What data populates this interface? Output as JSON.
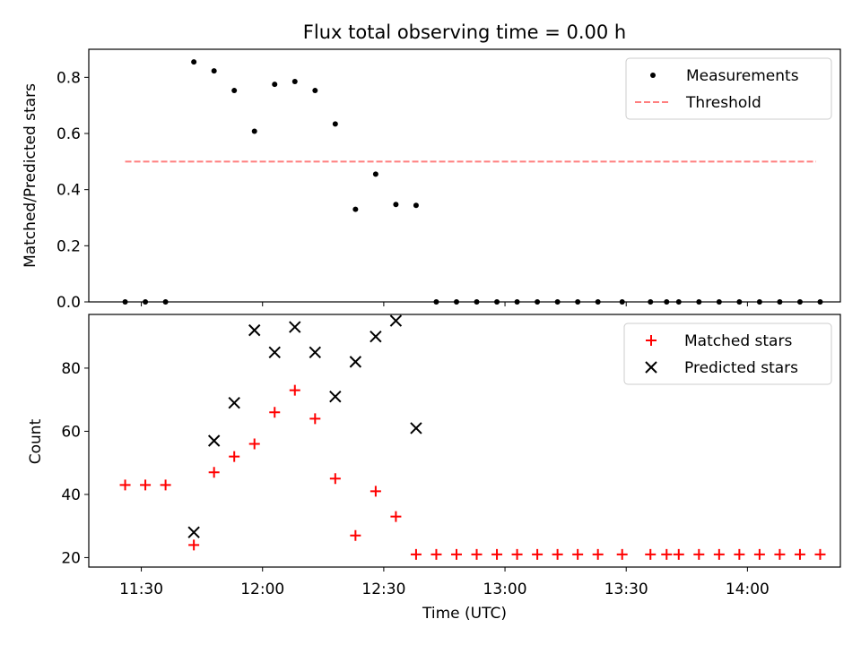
{
  "chart_data": [
    {
      "type": "scatter",
      "title": "Flux total observing time = 0.00 h",
      "ylabel": "Matched/Predicted stars",
      "xlabel": "",
      "ylim": [
        0,
        0.9
      ],
      "yticks": [
        0.0,
        0.2,
        0.4,
        0.6,
        0.8
      ],
      "ytick_labels": [
        "0.0",
        "0.2",
        "0.4",
        "0.6",
        "0.8"
      ],
      "xlim_minutes_utc": [
        677,
        863
      ],
      "legend_position": "top-right",
      "series": [
        {
          "name": "Measurements",
          "marker": "dot",
          "color": "#000000",
          "x_minutes_utc": [
            686,
            691,
            696,
            703,
            708,
            713,
            718,
            723,
            728,
            733,
            738,
            743,
            748,
            753,
            758,
            763,
            768,
            773,
            778,
            783,
            788,
            793,
            798,
            803,
            809,
            816,
            820,
            823,
            828,
            833,
            838,
            843,
            848,
            853,
            858
          ],
          "values": [
            0,
            0,
            0,
            0.855,
            0.823,
            0.753,
            0.608,
            0.775,
            0.785,
            0.753,
            0.634,
            0.33,
            0.455,
            0.347,
            0.344,
            0,
            0,
            0,
            0,
            0,
            0,
            0,
            0,
            0,
            0,
            0,
            0,
            0,
            0,
            0,
            0,
            0,
            0,
            0,
            0
          ]
        },
        {
          "name": "Threshold",
          "line_style": "dashed",
          "color": "#ff7f7f",
          "x_minutes_utc": [
            686,
            857
          ],
          "values": [
            0.5,
            0.5
          ]
        }
      ]
    },
    {
      "type": "scatter",
      "title": "",
      "ylabel": "Count",
      "xlabel": "Time (UTC)",
      "ylim": [
        17,
        97
      ],
      "yticks": [
        20,
        40,
        60,
        80
      ],
      "ytick_labels": [
        "20",
        "40",
        "60",
        "80"
      ],
      "xlim_minutes_utc": [
        677,
        863
      ],
      "xticks_minutes_utc": [
        690,
        720,
        750,
        780,
        810,
        840
      ],
      "xtick_labels": [
        "11:30",
        "12:00",
        "12:30",
        "13:00",
        "13:30",
        "14:00"
      ],
      "legend_position": "top-right",
      "series": [
        {
          "name": "Matched stars",
          "marker": "plus",
          "color": "#ff0000",
          "x_minutes_utc": [
            686,
            691,
            696,
            703,
            708,
            713,
            718,
            723,
            728,
            733,
            738,
            743,
            748,
            753,
            758,
            763,
            768,
            773,
            778,
            783,
            788,
            793,
            798,
            803,
            809,
            816,
            820,
            823,
            828,
            833,
            838,
            843,
            848,
            853,
            858
          ],
          "values": [
            43,
            43,
            43,
            24,
            47,
            52,
            56,
            66,
            73,
            64,
            45,
            27,
            41,
            33,
            21,
            21,
            21,
            21,
            21,
            21,
            21,
            21,
            21,
            21,
            21,
            21,
            21,
            21,
            21,
            21,
            21,
            21,
            21,
            21,
            21
          ]
        },
        {
          "name": "Predicted stars",
          "marker": "x",
          "color": "#000000",
          "x_minutes_utc": [
            703,
            708,
            713,
            718,
            723,
            728,
            733,
            738,
            743,
            748,
            753,
            758
          ],
          "values": [
            28,
            57,
            69,
            92,
            85,
            93,
            85,
            71,
            82,
            90,
            95,
            61
          ]
        }
      ]
    }
  ]
}
